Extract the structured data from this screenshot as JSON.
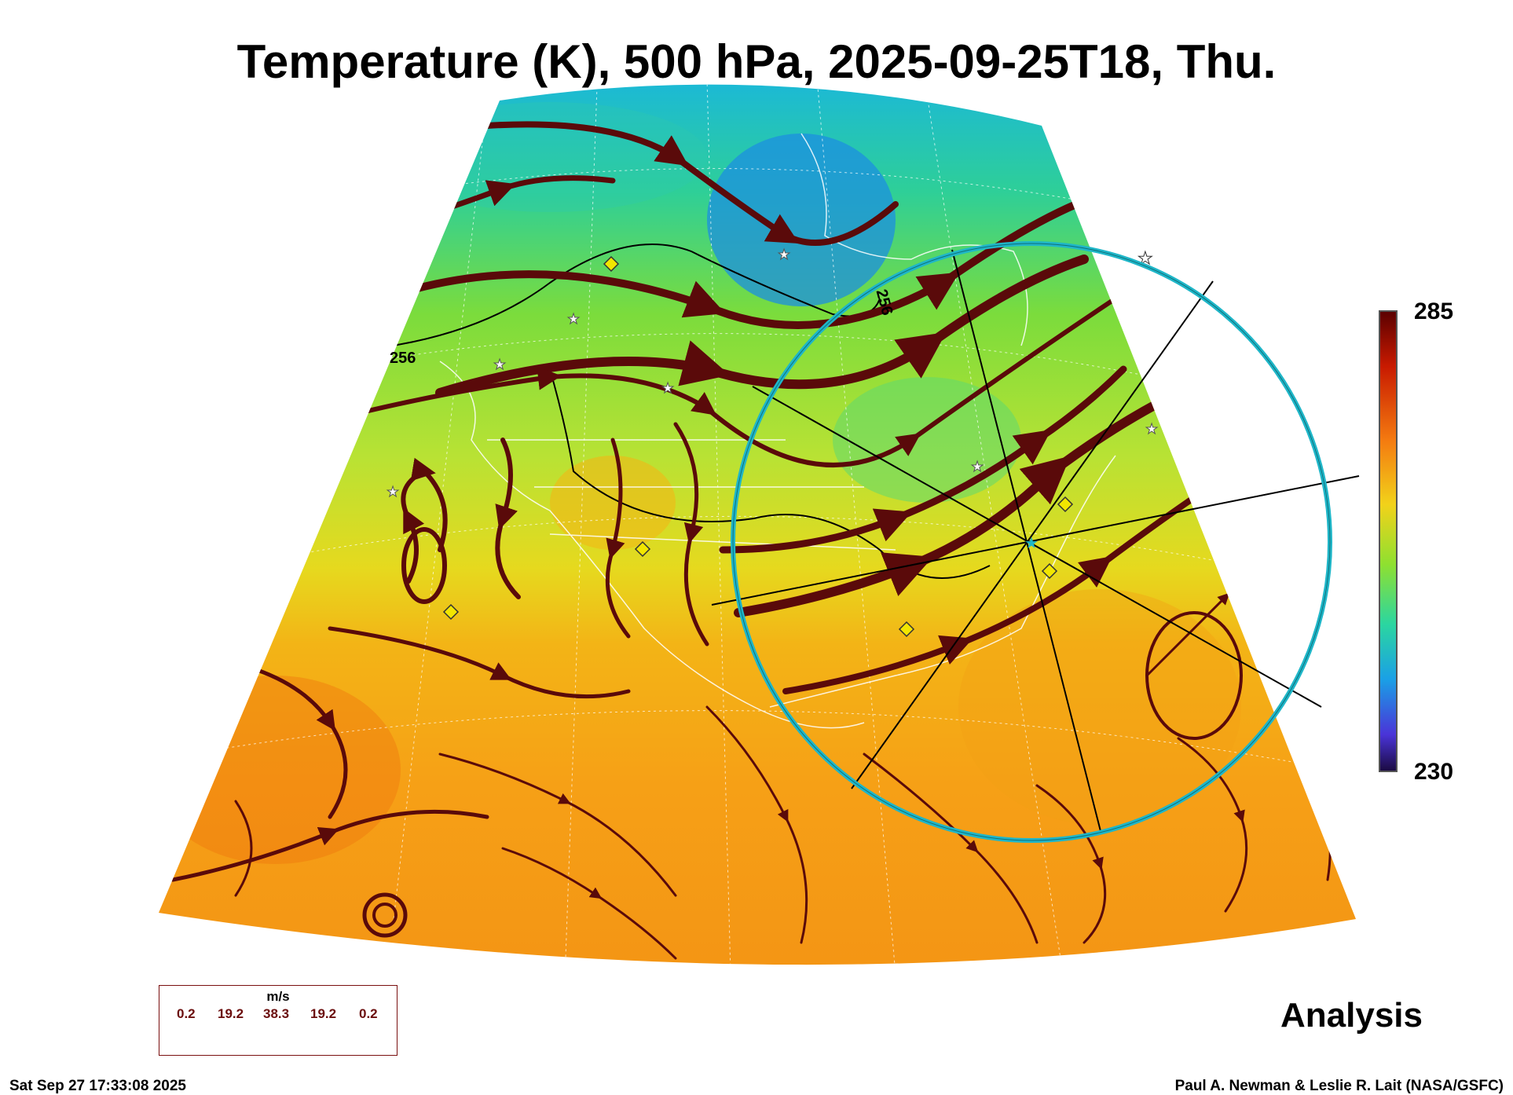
{
  "title": "Temperature (K), 500 hPa, 2025-09-25T18, Thu.",
  "colorbar": {
    "max_label": "285",
    "min_label": "230"
  },
  "contours": {
    "label_1": "256",
    "label_2": "256"
  },
  "product_label": "Analysis",
  "legend": {
    "units": "m/s",
    "values": [
      "0.2",
      "19.2",
      "38.3",
      "19.2",
      "0.2"
    ]
  },
  "footer": {
    "timestamp": "Sat Sep 27 17:33:08 2025",
    "credit": "Paul A. Newman & Leslie R. Lait (NASA/GSFC)"
  },
  "colors": {
    "streamline": "#5a0a0a",
    "circle": "#1fb6c8",
    "marker_diamond": "#f2e600",
    "marker_star": "#ffffff"
  }
}
